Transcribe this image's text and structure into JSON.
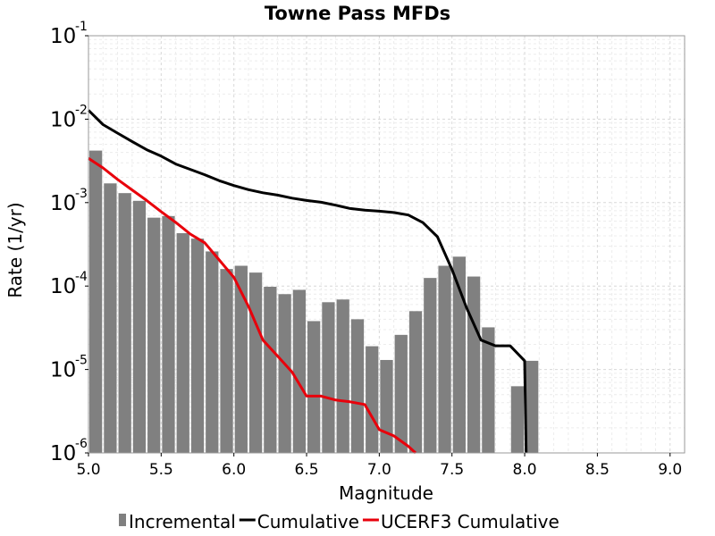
{
  "chart_data": {
    "type": "bar",
    "title": "Towne Pass MFDs",
    "xlabel": "Magnitude",
    "ylabel": "Rate (1/yr)",
    "xlim": [
      5.0,
      9.1
    ],
    "ylim": [
      1e-06,
      0.1
    ],
    "y_scale": "log",
    "grid": true,
    "legend_position": "bottom",
    "x_ticks": [
      "5.0",
      "5.5",
      "6.0",
      "6.5",
      "7.0",
      "7.5",
      "8.0",
      "8.5",
      "9.0"
    ],
    "y_ticks": [
      {
        "base": "10",
        "exp": "-1"
      },
      {
        "base": "10",
        "exp": "-2"
      },
      {
        "base": "10",
        "exp": "-3"
      },
      {
        "base": "10",
        "exp": "-4"
      },
      {
        "base": "10",
        "exp": "-5"
      },
      {
        "base": "10",
        "exp": "-6"
      }
    ],
    "bar_width": 0.1,
    "series": [
      {
        "name": "Incremental",
        "kind": "bars",
        "color": "#808080",
        "x": [
          5.05,
          5.15,
          5.25,
          5.35,
          5.45,
          5.55,
          5.65,
          5.75,
          5.85,
          5.95,
          6.05,
          6.15,
          6.25,
          6.35,
          6.45,
          6.55,
          6.65,
          6.75,
          6.85,
          6.95,
          7.05,
          7.15,
          7.25,
          7.35,
          7.45,
          7.55,
          7.65,
          7.75,
          7.85,
          7.95,
          8.05
        ],
        "values": [
          0.0042,
          0.0017,
          0.0013,
          0.00105,
          0.00066,
          0.00069,
          0.00043,
          0.00037,
          0.00026,
          0.00016,
          0.000175,
          0.000145,
          9.8e-05,
          8e-05,
          9e-05,
          3.8e-05,
          6.4e-05,
          6.9e-05,
          4e-05,
          1.9e-05,
          1.3e-05,
          2.6e-05,
          5e-05,
          0.000125,
          0.000175,
          0.000225,
          0.00013,
          3.2e-05,
          0,
          6.3e-06,
          1.27e-05
        ]
      },
      {
        "name": "Cumulative",
        "kind": "line",
        "color": "#000000",
        "x": [
          5.0,
          5.1,
          5.2,
          5.3,
          5.4,
          5.5,
          5.6,
          5.7,
          5.8,
          5.9,
          6.0,
          6.1,
          6.2,
          6.3,
          6.4,
          6.5,
          6.6,
          6.7,
          6.8,
          6.9,
          7.0,
          7.1,
          7.2,
          7.3,
          7.4,
          7.5,
          7.6,
          7.7,
          7.8,
          7.9,
          8.0,
          8.01
        ],
        "values": [
          0.0128,
          0.0086,
          0.0068,
          0.0054,
          0.0043,
          0.0036,
          0.0029,
          0.0025,
          0.00216,
          0.00183,
          0.0016,
          0.00143,
          0.00131,
          0.00123,
          0.00113,
          0.00106,
          0.00101,
          0.00093,
          0.00085,
          0.00081,
          0.00079,
          0.00076,
          0.00071,
          0.000575,
          0.00039,
          0.000158,
          5.5e-05,
          2.25e-05,
          1.92e-05,
          1.92e-05,
          1.27e-05,
          9e-07
        ]
      },
      {
        "name": "UCERF3 Cumulative",
        "kind": "line",
        "color": "#e8000b",
        "x": [
          5.0,
          5.1,
          5.2,
          5.3,
          5.4,
          5.5,
          5.6,
          5.7,
          5.8,
          5.9,
          6.0,
          6.1,
          6.2,
          6.3,
          6.4,
          6.5,
          6.6,
          6.7,
          6.8,
          6.9,
          7.0,
          7.1,
          7.2,
          7.25
        ],
        "values": [
          0.0034,
          0.0026,
          0.0019,
          0.00142,
          0.00106,
          0.00078,
          0.00058,
          0.00042,
          0.00033,
          0.000205,
          0.000127,
          5.7e-05,
          2.25e-05,
          1.45e-05,
          9.3e-06,
          4.8e-06,
          4.8e-06,
          4.3e-06,
          4.1e-06,
          3.8e-06,
          1.9e-06,
          1.6e-06,
          1.2e-06,
          9e-07
        ]
      }
    ]
  }
}
